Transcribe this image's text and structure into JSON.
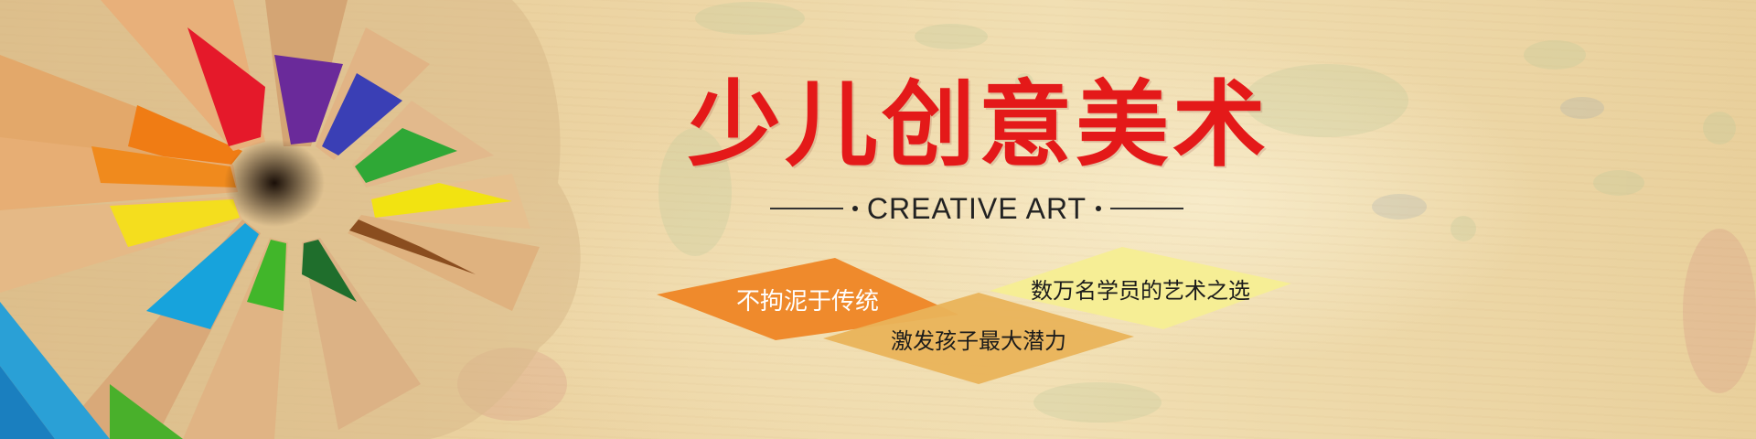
{
  "banner": {
    "title": "少儿创意美术",
    "subtitle": "CREATIVE ART",
    "tags": [
      {
        "label": "不拘泥于传统",
        "color": "#ef8a2c"
      },
      {
        "label": "数万名学员的艺术之选",
        "color": "#f6ee95"
      },
      {
        "label": "激发孩子最大潜力",
        "color": "#e9b35a"
      }
    ],
    "colors": {
      "title": "#e41919",
      "background": "#ecd4a3"
    },
    "image": "colored-pencils-circle"
  }
}
